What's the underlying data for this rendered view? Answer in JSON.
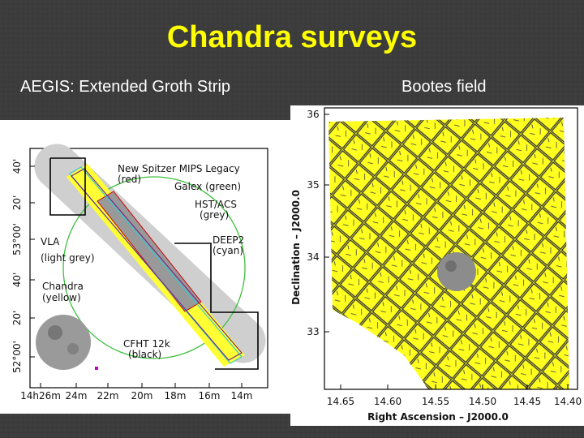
{
  "title": "Chandra surveys",
  "left": {
    "caption": "AEGIS: Extended Groth Strip",
    "y_ticks": [
      "40'",
      "20'",
      "53°00'",
      "40'",
      "20'",
      "52°00'"
    ],
    "x_ticks": [
      "14h26m",
      "24m",
      "22m",
      "20m",
      "18m",
      "16m",
      "14m"
    ],
    "labels": [
      "New Spitzer MIPS Legacy",
      "(red)",
      "Galex (green)",
      "HST/ACS",
      "(grey)",
      "DEEP2",
      "(cyan)",
      "VLA",
      "(light grey)",
      "Chandra",
      "(yellow)",
      "CFHT 12k",
      "(black)"
    ]
  },
  "right": {
    "caption": "Bootes field",
    "y_ticks": [
      "36",
      "35",
      "34",
      "33"
    ],
    "x_ticks": [
      "14.65",
      "14.60",
      "14.55",
      "14.50",
      "14.45",
      "14.40"
    ],
    "x_label": "Right Ascension – J2000.0",
    "y_label": "Declination – J2000.0"
  }
}
